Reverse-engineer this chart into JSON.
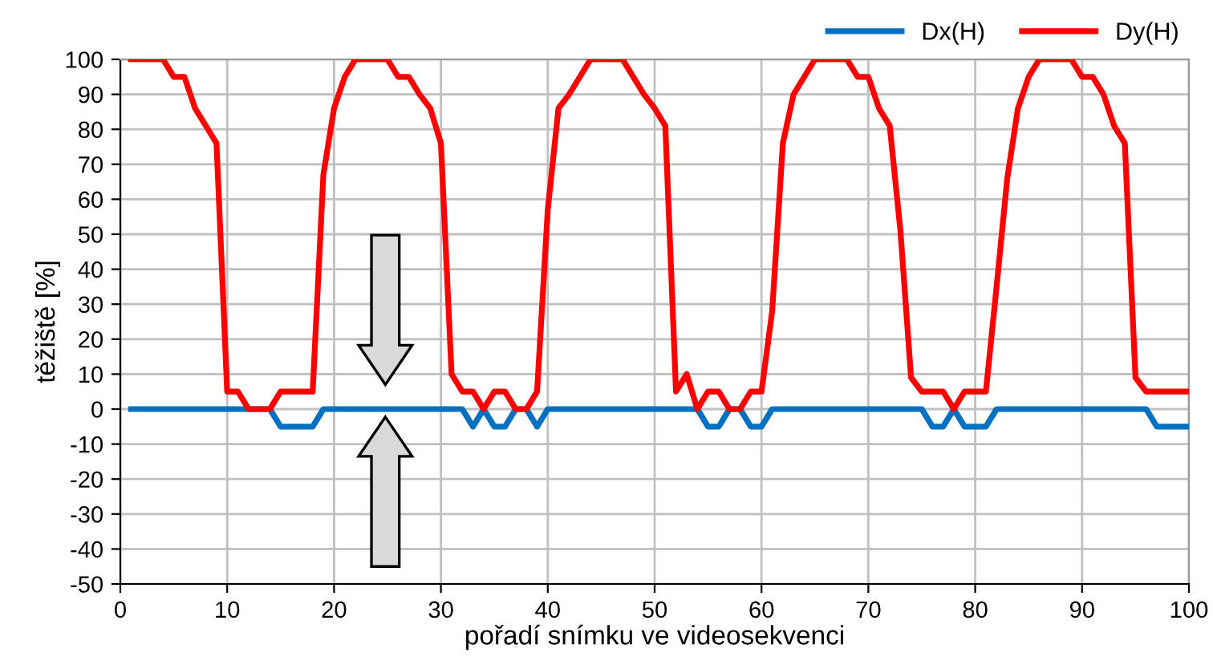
{
  "chart_data": {
    "type": "line",
    "xlabel": "pořadí snímku ve videosekvenci",
    "ylabel": "těžiště [%]",
    "x": [
      1,
      2,
      3,
      4,
      5,
      6,
      7,
      8,
      9,
      10,
      11,
      12,
      13,
      14,
      15,
      16,
      17,
      18,
      19,
      20,
      21,
      22,
      23,
      24,
      25,
      26,
      27,
      28,
      29,
      30,
      31,
      32,
      33,
      34,
      35,
      36,
      37,
      38,
      39,
      40,
      41,
      42,
      43,
      44,
      45,
      46,
      47,
      48,
      49,
      50,
      51,
      52,
      53,
      54,
      55,
      56,
      57,
      58,
      59,
      60,
      61,
      62,
      63,
      64,
      65,
      66,
      67,
      68,
      69,
      70,
      71,
      72,
      73,
      74,
      75,
      76,
      77,
      78,
      79,
      80,
      81,
      82,
      83,
      84,
      85,
      86,
      87,
      88,
      89,
      90,
      91,
      92,
      93,
      94,
      95,
      96,
      97,
      98,
      99,
      100
    ],
    "series": [
      {
        "name": "Dx(H)",
        "color": "#0070c0",
        "values": [
          0,
          0,
          0,
          0,
          0,
          0,
          0,
          0,
          0,
          0,
          0,
          0,
          0,
          0,
          -5,
          -5,
          -5,
          -5,
          0,
          0,
          0,
          0,
          0,
          0,
          0,
          0,
          0,
          0,
          0,
          0,
          0,
          0,
          -5,
          0,
          -5,
          -5,
          0,
          0,
          -5,
          0,
          0,
          0,
          0,
          0,
          0,
          0,
          0,
          0,
          0,
          0,
          0,
          0,
          0,
          0,
          -5,
          -5,
          0,
          0,
          -5,
          -5,
          0,
          0,
          0,
          0,
          0,
          0,
          0,
          0,
          0,
          0,
          0,
          0,
          0,
          0,
          0,
          -5,
          -5,
          0,
          -5,
          -5,
          -5,
          0,
          0,
          0,
          0,
          0,
          0,
          0,
          0,
          0,
          0,
          0,
          0,
          0,
          0,
          0,
          -5,
          -5,
          -5,
          -5
        ]
      },
      {
        "name": "Dy(H)",
        "color": "#ff0000",
        "values": [
          100,
          100,
          100,
          100,
          95,
          95,
          86,
          81,
          76,
          5,
          5,
          0,
          0,
          0,
          5,
          5,
          5,
          5,
          67,
          86,
          95,
          100,
          100,
          100,
          100,
          95,
          95,
          90,
          86,
          76,
          10,
          5,
          5,
          0,
          5,
          5,
          0,
          0,
          5,
          57,
          86,
          90,
          95,
          100,
          100,
          100,
          100,
          95,
          90,
          86,
          81,
          5,
          10,
          0,
          5,
          5,
          0,
          0,
          5,
          5,
          28,
          76,
          90,
          95,
          100,
          100,
          100,
          100,
          95,
          95,
          86,
          81,
          51,
          9,
          5,
          5,
          5,
          0,
          5,
          5,
          5,
          35,
          66,
          86,
          95,
          100,
          100,
          100,
          100,
          95,
          95,
          90,
          81,
          76,
          9,
          5,
          5,
          5,
          5,
          5
        ]
      }
    ],
    "xlim": [
      0,
      100
    ],
    "xticks": [
      0,
      10,
      20,
      30,
      40,
      50,
      60,
      70,
      80,
      90,
      100
    ],
    "ylim": [
      -50,
      100
    ],
    "yticks": [
      -50,
      -40,
      -30,
      -20,
      -10,
      0,
      10,
      20,
      30,
      40,
      50,
      60,
      70,
      80,
      90,
      100
    ],
    "grid": true,
    "legend": "top right",
    "marker": "none",
    "line_style": "solid"
  }
}
